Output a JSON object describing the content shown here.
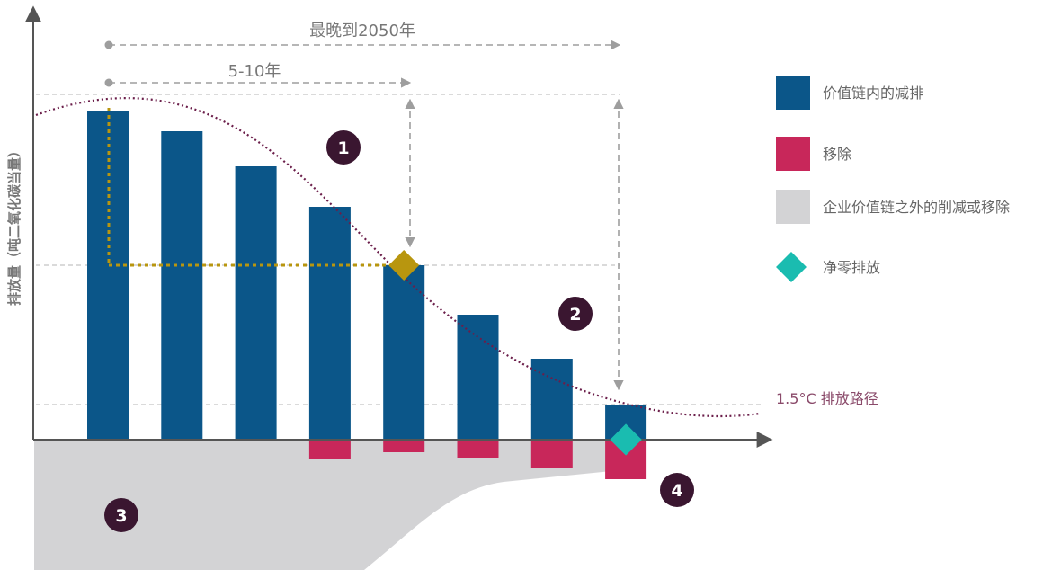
{
  "chart_data": {
    "type": "bar",
    "ylabel": "排放量（吨二氧化碳当量）",
    "categories": [
      "",
      "",
      "",
      "",
      "",
      "",
      "",
      ""
    ],
    "series": [
      {
        "name": "价值链内的减排",
        "values": [
          365,
          343,
          304,
          259,
          194,
          139,
          90,
          39
        ]
      },
      {
        "name": "移除",
        "values": [
          0,
          0,
          0,
          -21,
          -14,
          -20,
          -31,
          -44
        ]
      }
    ],
    "chain_external_area": {
      "name": "企业价值链之外的削减或移除"
    },
    "pathway": {
      "name": "1.5°C 排放路径",
      "color": "#6B1E4A",
      "style": "dotted"
    },
    "net_zero_marker": {
      "name": "净零排放",
      "color": "#1ABCB0",
      "bar_index": 7,
      "value": 0
    },
    "interim_marker": {
      "bar_index": 4,
      "value": 194,
      "color": "#B8960F"
    },
    "annotations": {
      "horizon_long": "最晚到2050年",
      "horizon_short": "5-10年",
      "badges": [
        "1",
        "2",
        "3",
        "4"
      ]
    },
    "legend": {
      "placement": "right",
      "items": [
        {
          "label": "价值链内的减排",
          "color": "#0B5689",
          "shape": "square"
        },
        {
          "label": "移除",
          "color": "#C8275A",
          "shape": "square"
        },
        {
          "label": "企业价值链之外的削减或移除",
          "color": "#D3D3D5",
          "shape": "square"
        },
        {
          "label": "净零排放",
          "color": "#1ABCB0",
          "shape": "diamond"
        }
      ]
    },
    "colors": {
      "abatement": "#0B5689",
      "removal": "#C8275A",
      "external": "#D3D3D5",
      "axis": "#555555",
      "badge": "#3A1630",
      "annotation_line": "#9E9E9E",
      "grid_line": "#C4C4C4"
    }
  }
}
